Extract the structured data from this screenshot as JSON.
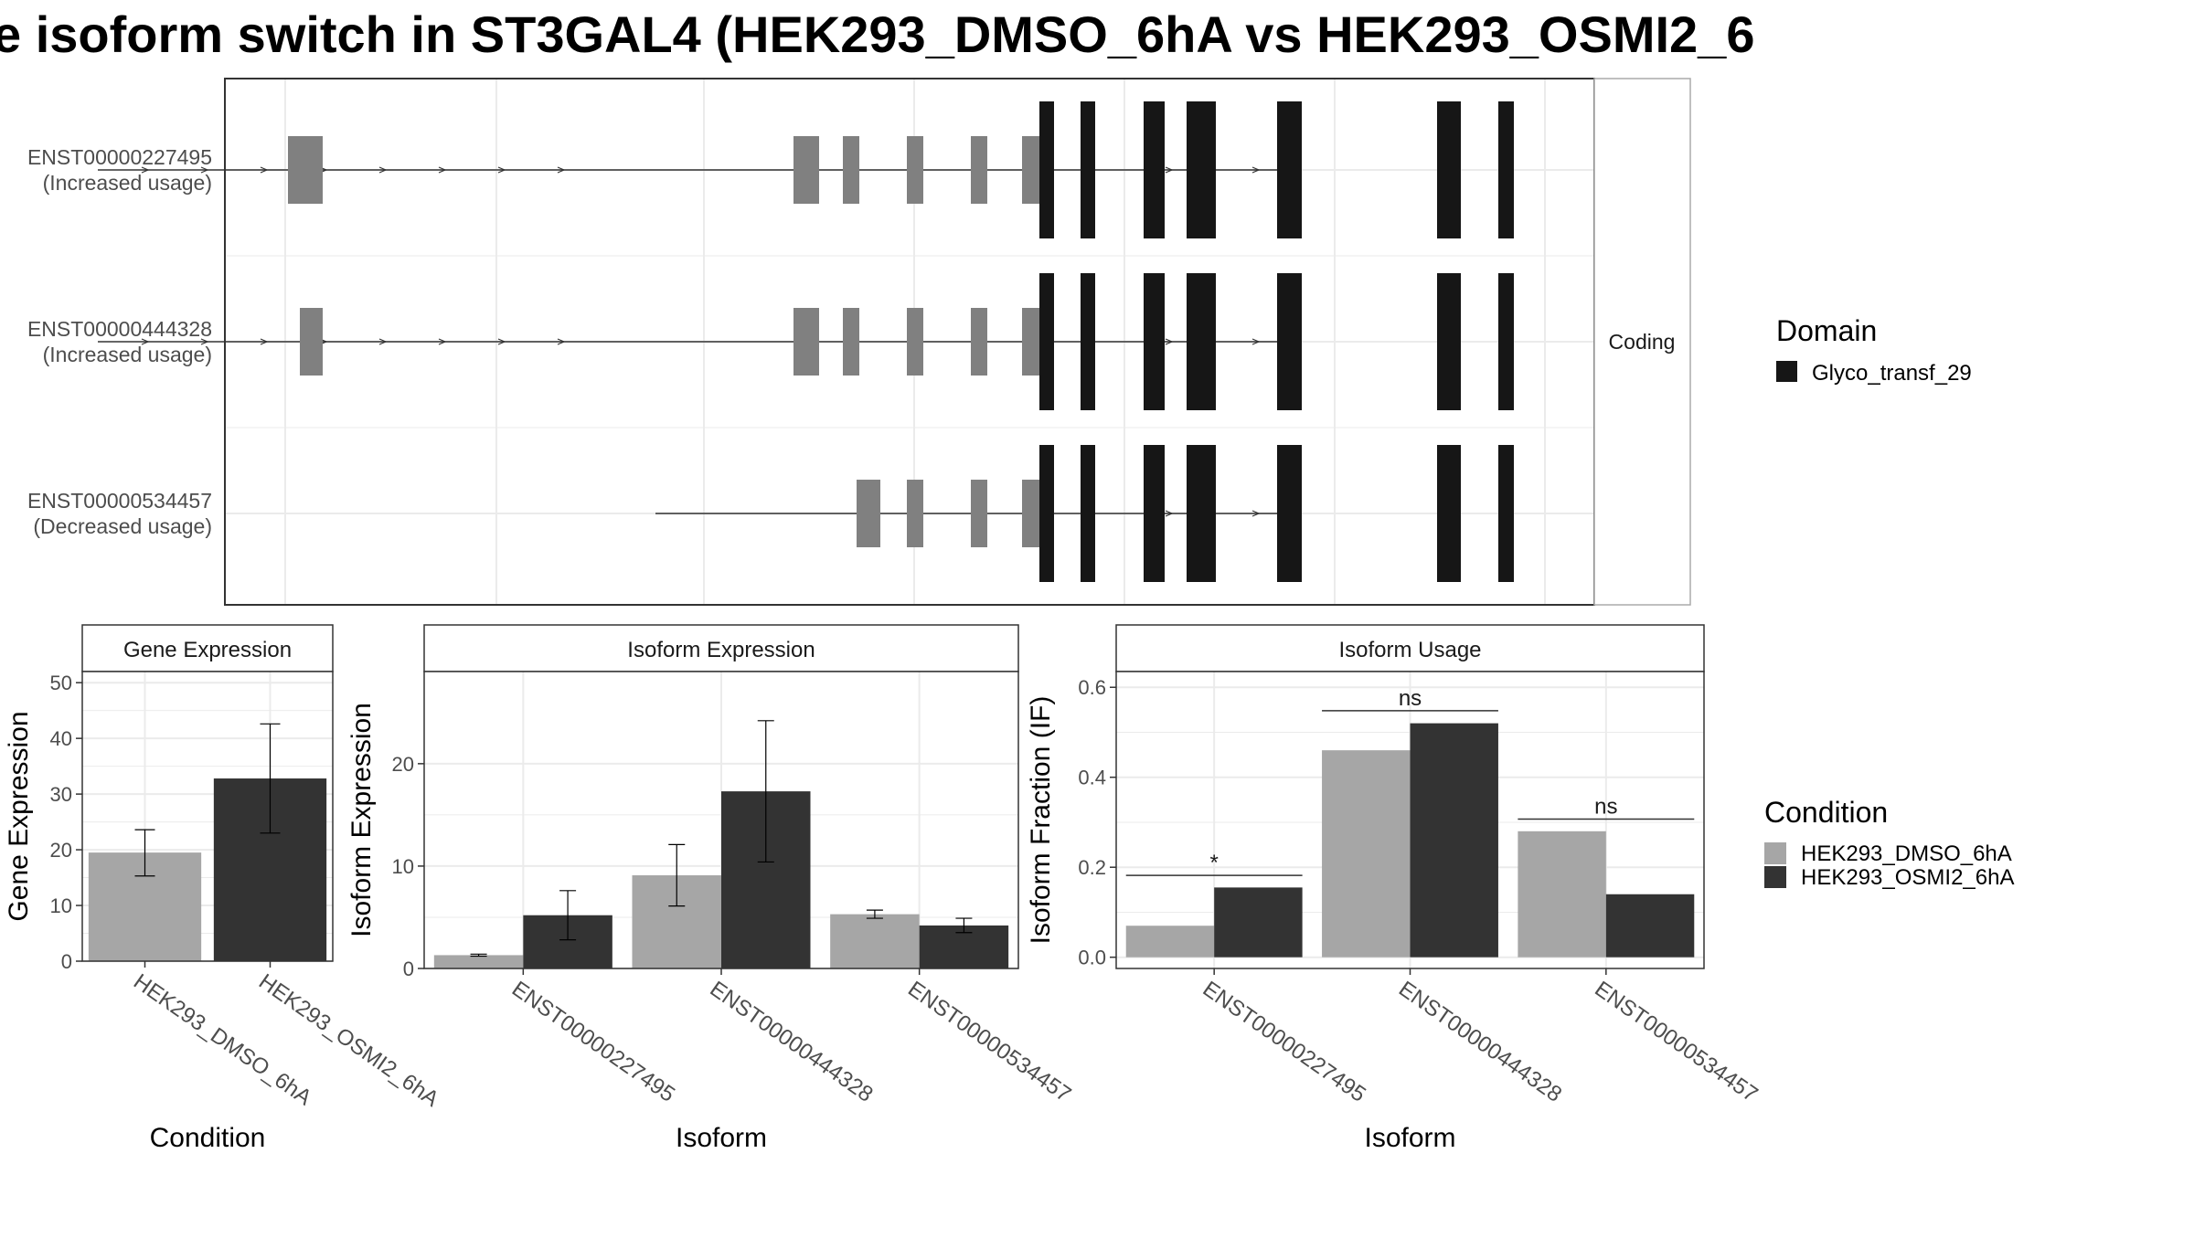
{
  "title": "e isoform switch in ST3GAL4 (HEK293_DMSO_6hA vs HEK293_OSMI2_6",
  "colors": {
    "utr": "#808080",
    "cds": "#000000",
    "domain": "#161616",
    "dmso": "#a6a6a6",
    "osmi2": "#333333",
    "grid": "#ebebeb",
    "frame": "#333333",
    "strip_bg": "#ffffff",
    "text": "#4d4d4d"
  },
  "transcript_panel": {
    "strip_label": "Coding",
    "transcripts": [
      {
        "id": "ENST00000227495",
        "note": "(Increased usage)",
        "utr_blocks": [
          [
            69,
            107
          ],
          [
            622,
            650
          ],
          [
            676,
            694
          ],
          [
            746,
            764
          ],
          [
            816,
            834
          ],
          [
            872,
            891
          ]
        ],
        "cds_blocks": [
          [
            891,
            907
          ],
          [
            1161,
            1172
          ],
          [
            1372,
            1410
          ]
        ],
        "domain_blocks": [
          [
            891,
            907
          ],
          [
            936,
            952
          ],
          [
            1005,
            1028
          ],
          [
            1052,
            1084
          ],
          [
            1151,
            1178
          ],
          [
            1326,
            1352
          ],
          [
            1393,
            1410
          ]
        ],
        "line": [
          107,
          1410
        ],
        "arrows": [
          160,
          225,
          290,
          355,
          420,
          485,
          550,
          615,
          1280,
          1328,
          1375
        ]
      },
      {
        "id": "ENST00000444328",
        "note": "(Increased usage)",
        "utr_blocks": [
          [
            82,
            107
          ],
          [
            622,
            650
          ],
          [
            676,
            694
          ],
          [
            746,
            764
          ],
          [
            816,
            834
          ],
          [
            872,
            891
          ]
        ],
        "cds_blocks": [
          [
            891,
            907
          ],
          [
            1161,
            1172
          ],
          [
            1372,
            1410
          ]
        ],
        "domain_blocks": [
          [
            891,
            907
          ],
          [
            936,
            952
          ],
          [
            1005,
            1028
          ],
          [
            1052,
            1084
          ],
          [
            1151,
            1178
          ],
          [
            1326,
            1352
          ],
          [
            1393,
            1410
          ]
        ],
        "line": [
          107,
          1410
        ],
        "arrows": [
          160,
          225,
          290,
          355,
          420,
          485,
          550,
          615,
          1280,
          1328,
          1375
        ]
      },
      {
        "id": "ENST00000534457",
        "note": "(Decreased usage)",
        "utr_blocks": [
          [
            691,
            717
          ],
          [
            746,
            764
          ],
          [
            816,
            834
          ],
          [
            872,
            891
          ]
        ],
        "cds_blocks": [
          [
            891,
            907
          ],
          [
            1161,
            1172
          ],
          [
            1372,
            1410
          ]
        ],
        "domain_blocks": [
          [
            891,
            907
          ],
          [
            936,
            952
          ],
          [
            1005,
            1028
          ],
          [
            1052,
            1084
          ],
          [
            1151,
            1178
          ],
          [
            1326,
            1352
          ],
          [
            1393,
            1410
          ]
        ],
        "line": [
          717,
          1410
        ],
        "arrows": [
          1280,
          1328,
          1375
        ]
      }
    ]
  },
  "domain_legend": {
    "title": "Domain",
    "items": [
      "Glyco_transf_29"
    ]
  },
  "condition_legend": {
    "title": "Condition",
    "items": [
      "HEK293_DMSO_6hA",
      "HEK293_OSMI2_6hA"
    ]
  },
  "chart_data": [
    {
      "type": "bar",
      "panel_title": "Gene Expression",
      "xlabel": "Condition",
      "ylabel": "Gene Expression",
      "ylim": [
        0,
        52
      ],
      "yticks": [
        0,
        10,
        20,
        30,
        40,
        50
      ],
      "categories": [
        "HEK293_DMSO_6hA",
        "HEK293_OSMI2_6hA"
      ],
      "values": [
        19.5,
        32.8
      ],
      "err_low": [
        15.3,
        23.0
      ],
      "err_high": [
        23.6,
        42.6
      ]
    },
    {
      "type": "bar",
      "panel_title": "Isoform Expression",
      "xlabel": "Isoform",
      "ylabel": "Isoform Expression",
      "ylim": [
        0,
        29
      ],
      "yticks": [
        0,
        10,
        20
      ],
      "categories": [
        "ENST00000227495",
        "ENST00000444328",
        "ENST00000534457"
      ],
      "series": [
        {
          "name": "HEK293_DMSO_6hA",
          "values": [
            1.3,
            9.1,
            5.3
          ],
          "err_low": [
            1.2,
            6.1,
            4.9
          ],
          "err_high": [
            1.4,
            12.1,
            5.7
          ]
        },
        {
          "name": "HEK293_OSMI2_6hA",
          "values": [
            5.2,
            17.3,
            4.2
          ],
          "err_low": [
            2.8,
            10.4,
            3.5
          ],
          "err_high": [
            7.6,
            24.2,
            4.9
          ]
        }
      ]
    },
    {
      "type": "bar",
      "panel_title": "Isoform Usage",
      "xlabel": "Isoform",
      "ylabel": "Isoform Fraction (IF)",
      "ylim": [
        -0.025,
        0.635
      ],
      "yticks": [
        0.0,
        0.2,
        0.4,
        0.6
      ],
      "ytick_labels": [
        "0.0",
        "0.2",
        "0.4",
        "0.6"
      ],
      "categories": [
        "ENST00000227495",
        "ENST00000444328",
        "ENST00000534457"
      ],
      "series": [
        {
          "name": "HEK293_DMSO_6hA",
          "values": [
            0.07,
            0.46,
            0.28
          ]
        },
        {
          "name": "HEK293_OSMI2_6hA",
          "values": [
            0.155,
            0.52,
            0.14
          ]
        }
      ],
      "significance": [
        {
          "label": "*",
          "y": 0.182
        },
        {
          "label": "ns",
          "y": 0.548
        },
        {
          "label": "ns",
          "y": 0.307
        }
      ]
    }
  ]
}
